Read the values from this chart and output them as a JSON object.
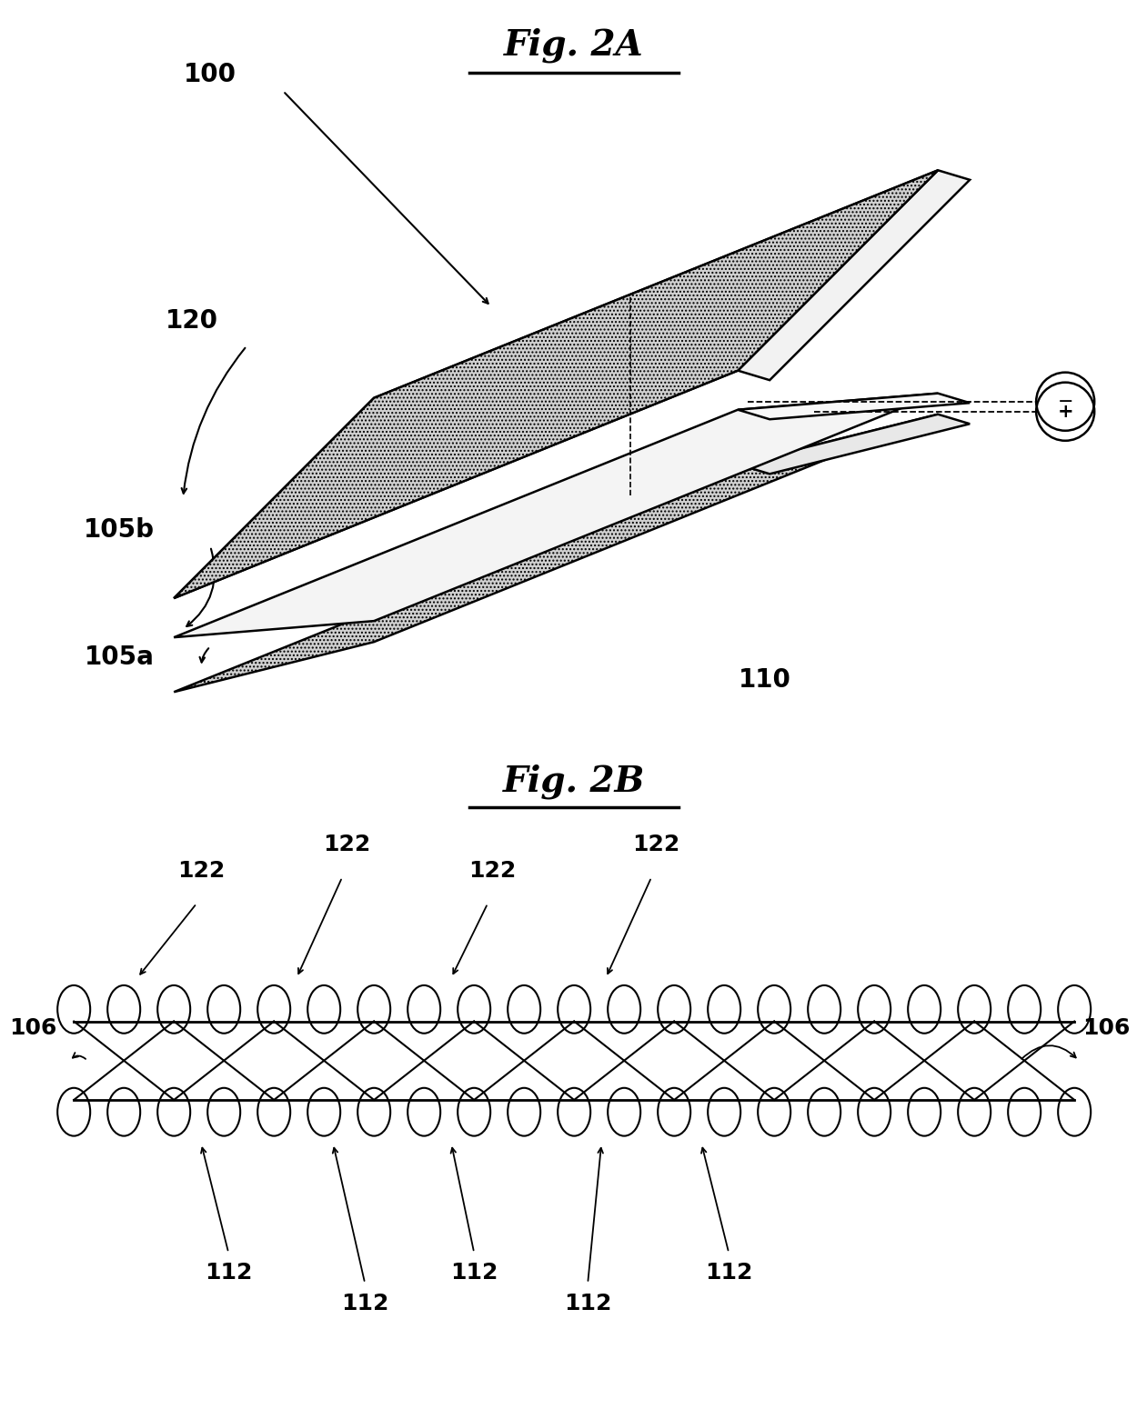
{
  "bg_color": "#ffffff",
  "fig_width": 12.4,
  "fig_height": 15.41,
  "title_2a": "Fig. 2A",
  "title_2b": "Fig. 2B",
  "label_100": "100",
  "label_120": "120",
  "label_105b": "105b",
  "label_105a": "105a",
  "label_110": "110",
  "label_106": "106",
  "label_122": "122",
  "label_112": "112",
  "layer_face_color": "#d0d0d0",
  "layer_edge_color": "#000000",
  "layer_side_color": "#e8e8e8",
  "layer_thin_color": "#e0e0e0",
  "layer_white_gap": "#f4f4f4"
}
